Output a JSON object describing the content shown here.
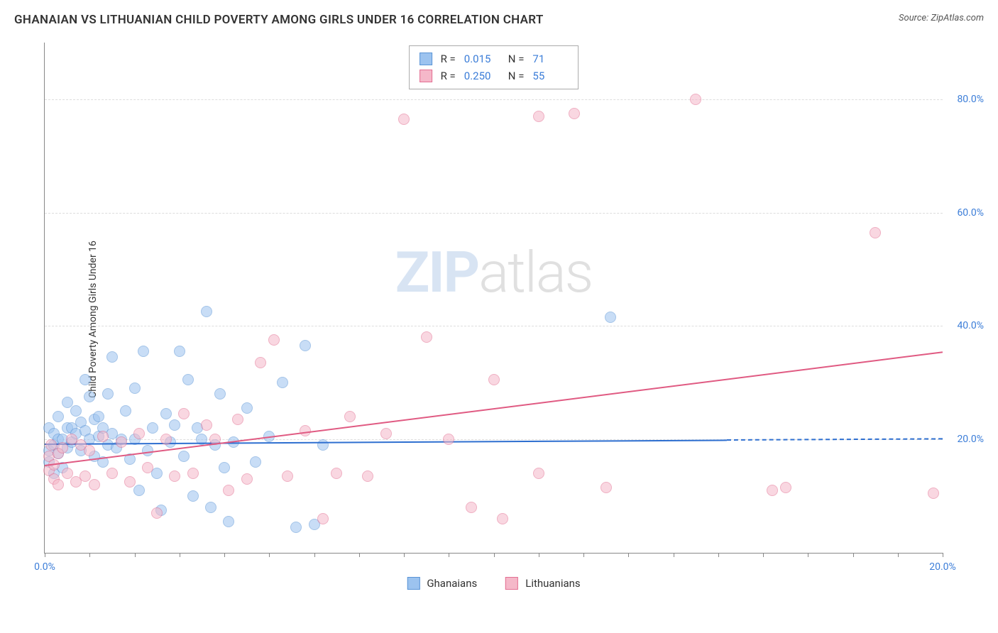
{
  "title": "GHANAIAN VS LITHUANIAN CHILD POVERTY AMONG GIRLS UNDER 16 CORRELATION CHART",
  "source_label": "Source: ",
  "source_name": "ZipAtlas.com",
  "ylabel": "Child Poverty Among Girls Under 16",
  "watermark_a": "ZIP",
  "watermark_b": "atlas",
  "chart": {
    "type": "scatter",
    "background_color": "#ffffff",
    "grid_color": "#dddddd",
    "axis_color": "#888888",
    "xlim": [
      0,
      20
    ],
    "ylim": [
      0,
      90
    ],
    "yticks": [
      {
        "v": 20,
        "label": "20.0%"
      },
      {
        "v": 40,
        "label": "40.0%"
      },
      {
        "v": 60,
        "label": "60.0%"
      },
      {
        "v": 80,
        "label": "80.0%"
      }
    ],
    "xticks": [
      0,
      1,
      2,
      3,
      4,
      5,
      6,
      7,
      8,
      9,
      10,
      11,
      12,
      13,
      14,
      15,
      16,
      17,
      18,
      19,
      20
    ],
    "xtick_labels": [
      {
        "v": 0,
        "label": "0.0%"
      },
      {
        "v": 20,
        "label": "20.0%"
      }
    ],
    "series": [
      {
        "key": "ghanaians",
        "label": "Ghanaians",
        "fill": "#9cc3ef",
        "stroke": "#5a94d6",
        "trend_color": "#2e6fd0",
        "R_label": "R =",
        "R": "0.015",
        "N_label": "N =",
        "N": "71",
        "trend": {
          "x1": 0,
          "y1": 19.3,
          "x2": 15.2,
          "y2": 20.0,
          "dash_to_x": 20,
          "dash_to_y": 20.2
        },
        "points": [
          [
            0.1,
            18
          ],
          [
            0.1,
            16
          ],
          [
            0.1,
            22
          ],
          [
            0.2,
            19
          ],
          [
            0.2,
            21
          ],
          [
            0.2,
            14
          ],
          [
            0.3,
            20
          ],
          [
            0.3,
            17.5
          ],
          [
            0.3,
            24
          ],
          [
            0.4,
            20
          ],
          [
            0.4,
            15
          ],
          [
            0.5,
            22
          ],
          [
            0.5,
            18.5
          ],
          [
            0.5,
            26.5
          ],
          [
            0.6,
            22
          ],
          [
            0.6,
            19.5
          ],
          [
            0.7,
            25
          ],
          [
            0.7,
            21
          ],
          [
            0.8,
            23
          ],
          [
            0.8,
            18
          ],
          [
            0.9,
            30.5
          ],
          [
            0.9,
            21.5
          ],
          [
            1.0,
            20
          ],
          [
            1.0,
            27.5
          ],
          [
            1.1,
            23.5
          ],
          [
            1.1,
            17
          ],
          [
            1.2,
            24
          ],
          [
            1.2,
            20.5
          ],
          [
            1.3,
            16
          ],
          [
            1.3,
            22
          ],
          [
            1.4,
            28
          ],
          [
            1.4,
            19
          ],
          [
            1.5,
            34.5
          ],
          [
            1.5,
            21
          ],
          [
            1.6,
            18.5
          ],
          [
            1.7,
            20
          ],
          [
            1.8,
            25
          ],
          [
            1.9,
            16.5
          ],
          [
            2.0,
            29
          ],
          [
            2.0,
            20
          ],
          [
            2.1,
            11
          ],
          [
            2.2,
            35.5
          ],
          [
            2.3,
            18
          ],
          [
            2.4,
            22
          ],
          [
            2.5,
            14
          ],
          [
            2.6,
            7.5
          ],
          [
            2.7,
            24.5
          ],
          [
            2.8,
            19.5
          ],
          [
            2.9,
            22.5
          ],
          [
            3.0,
            35.5
          ],
          [
            3.1,
            17
          ],
          [
            3.2,
            30.5
          ],
          [
            3.3,
            10
          ],
          [
            3.4,
            22
          ],
          [
            3.5,
            20
          ],
          [
            3.6,
            42.5
          ],
          [
            3.7,
            8
          ],
          [
            3.8,
            19
          ],
          [
            3.9,
            28
          ],
          [
            4.0,
            15
          ],
          [
            4.1,
            5.5
          ],
          [
            4.2,
            19.5
          ],
          [
            4.5,
            25.5
          ],
          [
            4.7,
            16
          ],
          [
            5.0,
            20.5
          ],
          [
            5.3,
            30
          ],
          [
            5.6,
            4.5
          ],
          [
            5.8,
            36.5
          ],
          [
            6.0,
            5
          ],
          [
            6.2,
            19
          ],
          [
            12.6,
            41.5
          ]
        ]
      },
      {
        "key": "lithuanians",
        "label": "Lithuanians",
        "fill": "#f5b8c9",
        "stroke": "#e36f92",
        "trend_color": "#e05a82",
        "R_label": "R =",
        "R": "0.250",
        "N_label": "N =",
        "N": "55",
        "trend": {
          "x1": 0,
          "y1": 15.5,
          "x2": 20,
          "y2": 35.5
        },
        "points": [
          [
            0.1,
            17
          ],
          [
            0.1,
            14.5
          ],
          [
            0.15,
            19
          ],
          [
            0.2,
            15.5
          ],
          [
            0.2,
            13
          ],
          [
            0.3,
            17.5
          ],
          [
            0.3,
            12
          ],
          [
            0.4,
            18.5
          ],
          [
            0.5,
            14
          ],
          [
            0.6,
            20
          ],
          [
            0.7,
            12.5
          ],
          [
            0.8,
            19
          ],
          [
            0.9,
            13.5
          ],
          [
            1.0,
            18
          ],
          [
            1.1,
            12
          ],
          [
            1.3,
            20.5
          ],
          [
            1.5,
            14
          ],
          [
            1.7,
            19.5
          ],
          [
            1.9,
            12.5
          ],
          [
            2.1,
            21
          ],
          [
            2.3,
            15
          ],
          [
            2.5,
            7
          ],
          [
            2.7,
            20
          ],
          [
            2.9,
            13.5
          ],
          [
            3.1,
            24.5
          ],
          [
            3.3,
            14
          ],
          [
            3.6,
            22.5
          ],
          [
            3.8,
            20
          ],
          [
            4.1,
            11
          ],
          [
            4.3,
            23.5
          ],
          [
            4.5,
            13
          ],
          [
            4.8,
            33.5
          ],
          [
            5.1,
            37.5
          ],
          [
            5.4,
            13.5
          ],
          [
            5.8,
            21.5
          ],
          [
            6.2,
            6
          ],
          [
            6.5,
            14
          ],
          [
            6.8,
            24
          ],
          [
            7.2,
            13.5
          ],
          [
            7.6,
            21
          ],
          [
            8.0,
            76.5
          ],
          [
            8.5,
            38
          ],
          [
            9.0,
            20
          ],
          [
            9.5,
            8
          ],
          [
            10.0,
            30.5
          ],
          [
            10.2,
            6
          ],
          [
            11.0,
            14
          ],
          [
            11.0,
            77
          ],
          [
            11.8,
            77.5
          ],
          [
            12.5,
            11.5
          ],
          [
            14.5,
            80
          ],
          [
            16.2,
            11
          ],
          [
            16.5,
            11.5
          ],
          [
            18.5,
            56.5
          ],
          [
            19.8,
            10.5
          ]
        ]
      }
    ]
  }
}
